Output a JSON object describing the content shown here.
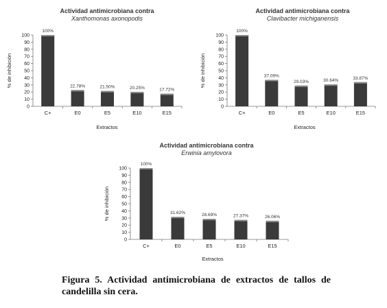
{
  "chart_data": [
    {
      "type": "bar",
      "title": "Actividad antimicrobiana contra",
      "subtitle": "Xanthomonas axonopodis",
      "xlabel": "Extractos",
      "ylabel": "% de inhibición",
      "ylim": [
        0,
        100
      ],
      "yticks": [
        0,
        10,
        20,
        30,
        40,
        50,
        60,
        70,
        80,
        90,
        100
      ],
      "grid": false,
      "categories": [
        "C+",
        "E0",
        "E5",
        "E10",
        "E15"
      ],
      "values": [
        100,
        22.78,
        21.5,
        20.25,
        17.72
      ],
      "data_labels": [
        "100%",
        "22.78%",
        "21.50%",
        "20.25%",
        "17.72%"
      ],
      "bar_color": "#3a3a3a"
    },
    {
      "type": "bar",
      "title": "Actividad antimicrobiana contra",
      "subtitle": "Clavibacter michiganensis",
      "xlabel": "Extractos",
      "ylabel": "% de inhibición",
      "ylim": [
        0,
        100
      ],
      "yticks": [
        0,
        10,
        20,
        30,
        40,
        50,
        60,
        70,
        80,
        90,
        100
      ],
      "grid": false,
      "categories": [
        "C+",
        "E0",
        "E5",
        "E10",
        "E15"
      ],
      "values": [
        100,
        37.09,
        29.03,
        30.64,
        33.87
      ],
      "data_labels": [
        "100%",
        "37.09%",
        "29.03%",
        "30.64%",
        "33.87%"
      ],
      "bar_color": "#3a3a3a"
    },
    {
      "type": "bar",
      "title": "Actividad antimicrobiana contra",
      "subtitle": "Erwinia amylovora",
      "xlabel": "Extractos",
      "ylabel": "% de inhibición",
      "ylim": [
        0,
        100
      ],
      "yticks": [
        0,
        10,
        20,
        30,
        40,
        50,
        60,
        70,
        80,
        90,
        100
      ],
      "grid": false,
      "categories": [
        "C+",
        "E0",
        "E5",
        "E10",
        "E15"
      ],
      "values": [
        100,
        31.62,
        28.69,
        27.37,
        26.06
      ],
      "data_labels": [
        "100%",
        "31.62%",
        "28.69%",
        "27.37%",
        "26.06%"
      ],
      "bar_color": "#3a3a3a"
    }
  ],
  "caption": "Figura 5. Actividad antimicrobiana de extractos de tallos de candelilla sin cera."
}
